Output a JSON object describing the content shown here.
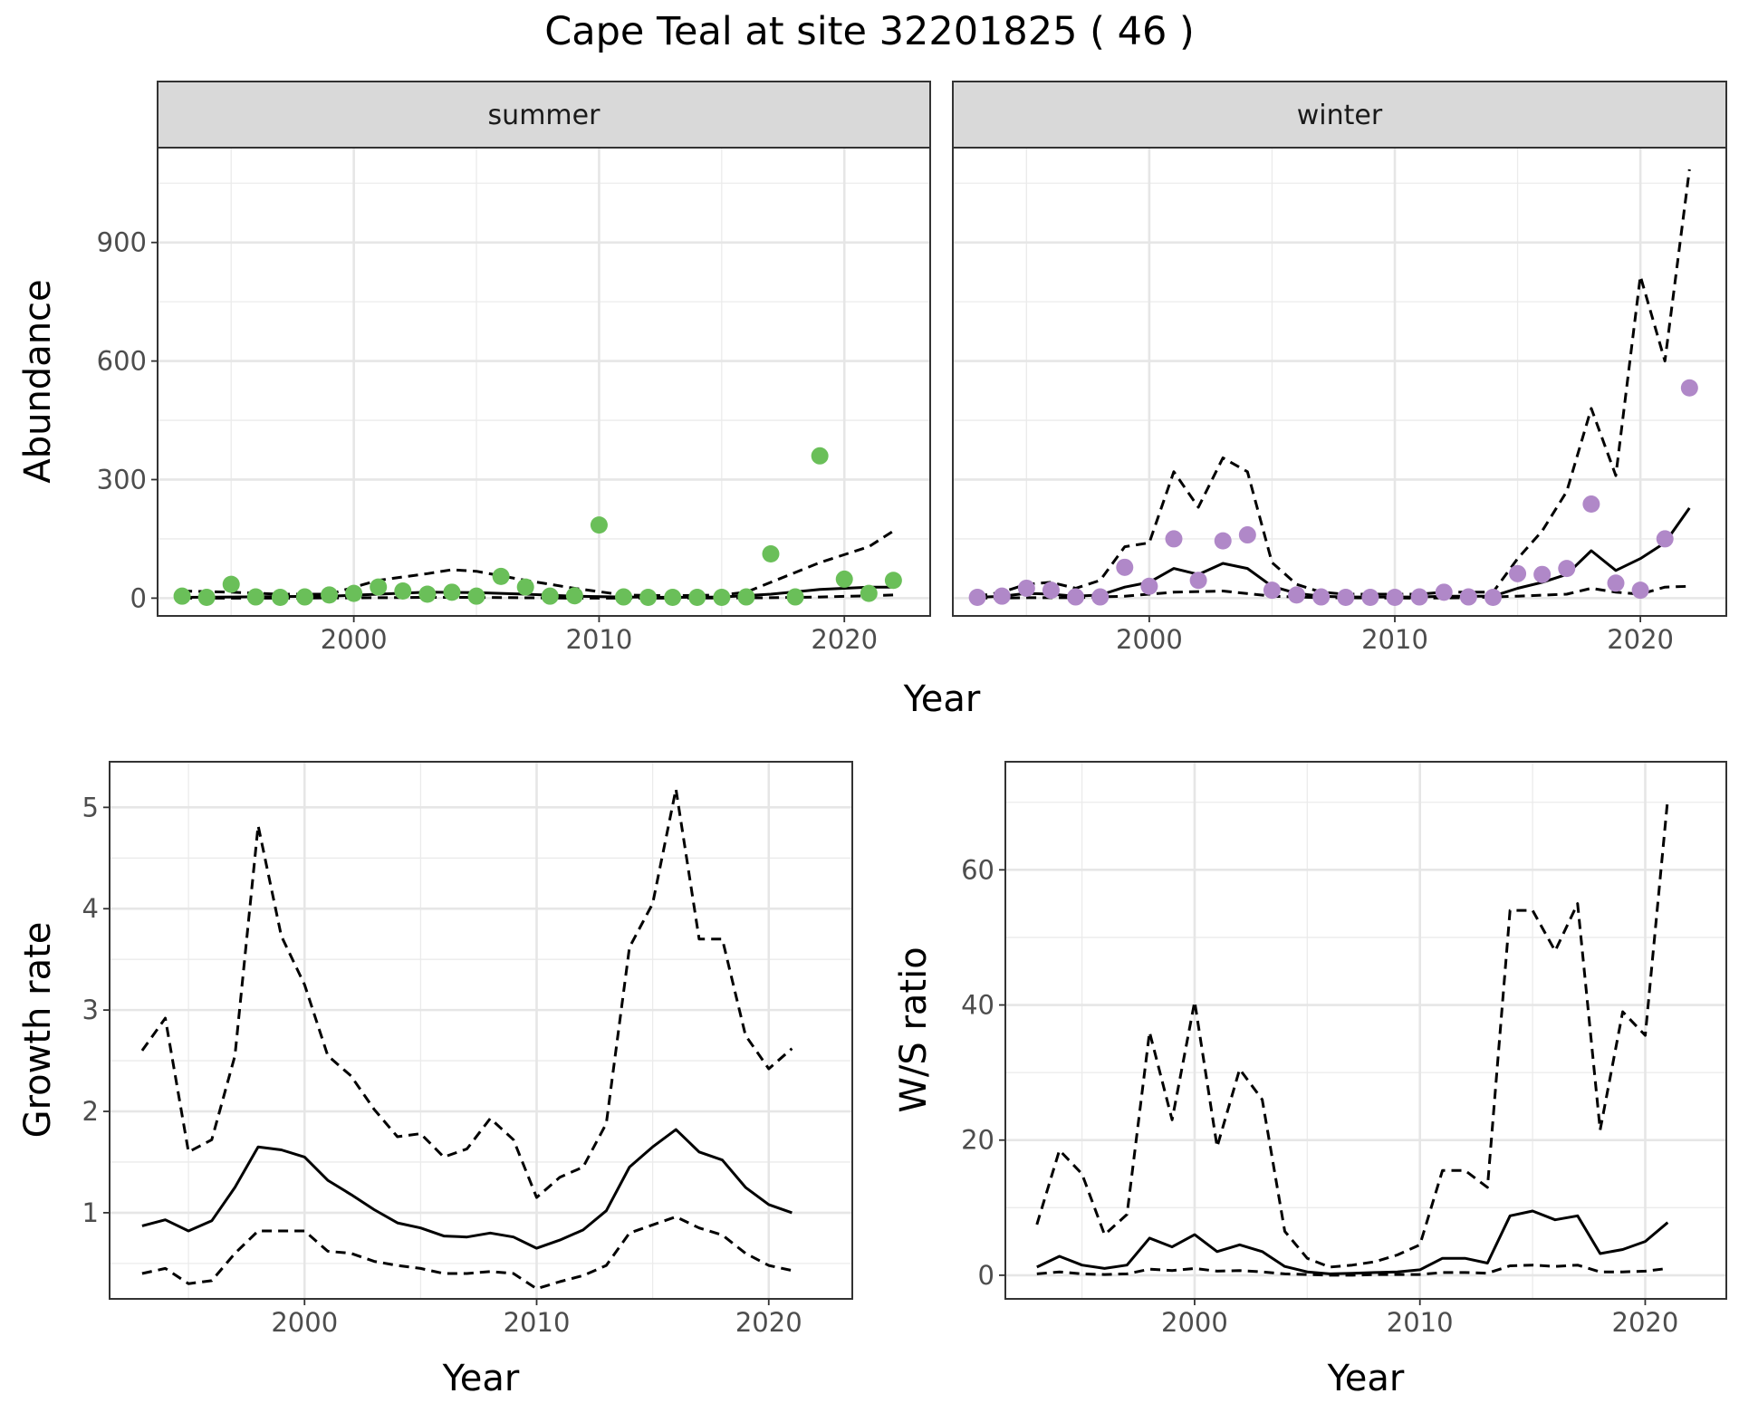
{
  "title": "Cape Teal at site 32201825 ( 46 )",
  "colors": {
    "summer_points": "#6abf59",
    "winter_points": "#b088c8",
    "lines": "#000000",
    "strip_fill": "#d9d9d9"
  },
  "chart_data": [
    {
      "type": "scatter",
      "panel": "abundance",
      "facets": [
        "summer",
        "winter"
      ],
      "xlabel": "Year",
      "ylabel": "Abundance",
      "xlim": [
        1992,
        2023.5
      ],
      "ylim": [
        -45,
        1140
      ],
      "xticks": [
        2000,
        2010,
        2020
      ],
      "yticks": [
        0,
        300,
        600,
        900
      ],
      "grid": true,
      "series": [
        {
          "facet": "summer",
          "points": [
            [
              1993,
              5
            ],
            [
              1994,
              2
            ],
            [
              1995,
              35
            ],
            [
              1996,
              3
            ],
            [
              1997,
              2
            ],
            [
              1998,
              3
            ],
            [
              1999,
              8
            ],
            [
              2000,
              12
            ],
            [
              2001,
              28
            ],
            [
              2002,
              18
            ],
            [
              2003,
              10
            ],
            [
              2004,
              15
            ],
            [
              2005,
              5
            ],
            [
              2006,
              55
            ],
            [
              2007,
              28
            ],
            [
              2008,
              5
            ],
            [
              2009,
              6
            ],
            [
              2010,
              185
            ],
            [
              2011,
              3
            ],
            [
              2012,
              2
            ],
            [
              2013,
              2
            ],
            [
              2014,
              2
            ],
            [
              2015,
              2
            ],
            [
              2016,
              3
            ],
            [
              2017,
              112
            ],
            [
              2018,
              3
            ],
            [
              2019,
              360
            ],
            [
              2020,
              48
            ],
            [
              2021,
              12
            ],
            [
              2022,
              45
            ]
          ],
          "fit": [
            [
              1993,
              2
            ],
            [
              1995,
              3
            ],
            [
              1997,
              4
            ],
            [
              1999,
              5
            ],
            [
              2001,
              10
            ],
            [
              2003,
              15
            ],
            [
              2005,
              14
            ],
            [
              2007,
              10
            ],
            [
              2009,
              5
            ],
            [
              2011,
              3
            ],
            [
              2013,
              2
            ],
            [
              2015,
              3
            ],
            [
              2017,
              10
            ],
            [
              2019,
              22
            ],
            [
              2021,
              28
            ],
            [
              2022,
              28
            ]
          ],
          "upper": [
            [
              1993,
              18
            ],
            [
              1995,
              15
            ],
            [
              1997,
              10
            ],
            [
              1999,
              10
            ],
            [
              2001,
              45
            ],
            [
              2003,
              62
            ],
            [
              2004,
              72
            ],
            [
              2005,
              68
            ],
            [
              2007,
              45
            ],
            [
              2009,
              25
            ],
            [
              2011,
              8
            ],
            [
              2013,
              6
            ],
            [
              2015,
              8
            ],
            [
              2016,
              15
            ],
            [
              2017,
              40
            ],
            [
              2019,
              90
            ],
            [
              2021,
              130
            ],
            [
              2022,
              170
            ]
          ],
          "lower": [
            [
              1993,
              0
            ],
            [
              1997,
              0
            ],
            [
              2001,
              1
            ],
            [
              2003,
              2
            ],
            [
              2005,
              2
            ],
            [
              2009,
              0
            ],
            [
              2013,
              0
            ],
            [
              2017,
              1
            ],
            [
              2019,
              3
            ],
            [
              2021,
              6
            ],
            [
              2022,
              8
            ]
          ]
        },
        {
          "facet": "winter",
          "points": [
            [
              1993,
              2
            ],
            [
              1994,
              5
            ],
            [
              1995,
              25
            ],
            [
              1996,
              20
            ],
            [
              1997,
              3
            ],
            [
              1998,
              3
            ],
            [
              1999,
              78
            ],
            [
              2000,
              30
            ],
            [
              2001,
              150
            ],
            [
              2002,
              45
            ],
            [
              2003,
              145
            ],
            [
              2004,
              160
            ],
            [
              2005,
              20
            ],
            [
              2006,
              8
            ],
            [
              2007,
              3
            ],
            [
              2008,
              2
            ],
            [
              2009,
              2
            ],
            [
              2010,
              2
            ],
            [
              2011,
              3
            ],
            [
              2012,
              15
            ],
            [
              2013,
              3
            ],
            [
              2014,
              2
            ],
            [
              2015,
              62
            ],
            [
              2016,
              60
            ],
            [
              2017,
              75
            ],
            [
              2018,
              238
            ],
            [
              2019,
              38
            ],
            [
              2020,
              20
            ],
            [
              2021,
              150
            ],
            [
              2022,
              532
            ]
          ],
          "fit": [
            [
              1993,
              2
            ],
            [
              1994,
              5
            ],
            [
              1995,
              12
            ],
            [
              1996,
              10
            ],
            [
              1997,
              5
            ],
            [
              1998,
              8
            ],
            [
              1999,
              28
            ],
            [
              2000,
              40
            ],
            [
              2001,
              75
            ],
            [
              2002,
              60
            ],
            [
              2003,
              88
            ],
            [
              2004,
              75
            ],
            [
              2005,
              30
            ],
            [
              2006,
              12
            ],
            [
              2007,
              5
            ],
            [
              2008,
              3
            ],
            [
              2009,
              3
            ],
            [
              2010,
              3
            ],
            [
              2011,
              3
            ],
            [
              2012,
              5
            ],
            [
              2013,
              5
            ],
            [
              2014,
              5
            ],
            [
              2015,
              25
            ],
            [
              2016,
              40
            ],
            [
              2017,
              60
            ],
            [
              2018,
              120
            ],
            [
              2019,
              70
            ],
            [
              2020,
              100
            ],
            [
              2021,
              140
            ],
            [
              2022,
              228
            ]
          ],
          "upper": [
            [
              1993,
              5
            ],
            [
              1994,
              15
            ],
            [
              1995,
              35
            ],
            [
              1996,
              40
            ],
            [
              1997,
              25
            ],
            [
              1998,
              45
            ],
            [
              1999,
              130
            ],
            [
              2000,
              140
            ],
            [
              2001,
              320
            ],
            [
              2002,
              230
            ],
            [
              2003,
              355
            ],
            [
              2004,
              320
            ],
            [
              2005,
              90
            ],
            [
              2006,
              35
            ],
            [
              2007,
              15
            ],
            [
              2008,
              10
            ],
            [
              2009,
              10
            ],
            [
              2010,
              10
            ],
            [
              2011,
              10
            ],
            [
              2012,
              15
            ],
            [
              2013,
              15
            ],
            [
              2014,
              15
            ],
            [
              2015,
              100
            ],
            [
              2016,
              170
            ],
            [
              2017,
              270
            ],
            [
              2018,
              480
            ],
            [
              2019,
              310
            ],
            [
              2020,
              815
            ],
            [
              2021,
              600
            ],
            [
              2022,
              1085
            ]
          ],
          "lower": [
            [
              1993,
              0
            ],
            [
              1995,
              1
            ],
            [
              1997,
              1
            ],
            [
              1999,
              5
            ],
            [
              2001,
              15
            ],
            [
              2003,
              18
            ],
            [
              2005,
              5
            ],
            [
              2007,
              1
            ],
            [
              2011,
              0
            ],
            [
              2013,
              1
            ],
            [
              2015,
              5
            ],
            [
              2017,
              10
            ],
            [
              2018,
              25
            ],
            [
              2019,
              15
            ],
            [
              2020,
              10
            ],
            [
              2021,
              28
            ],
            [
              2022,
              30
            ]
          ]
        }
      ]
    },
    {
      "type": "line",
      "panel": "growth",
      "xlabel": "Year",
      "ylabel": "Growth rate",
      "xlim": [
        1991.6,
        2023.6
      ],
      "ylim": [
        0.15,
        5.45
      ],
      "xticks": [
        2000,
        2010,
        2020
      ],
      "yticks": [
        1,
        2,
        3,
        4,
        5
      ],
      "grid": true,
      "x": [
        1993,
        1994,
        1995,
        1996,
        1997,
        1998,
        1999,
        2000,
        2001,
        2002,
        2003,
        2004,
        2005,
        2006,
        2007,
        2008,
        2009,
        2010,
        2011,
        2012,
        2013,
        2014,
        2015,
        2016,
        2017,
        2018,
        2019,
        2020,
        2021
      ],
      "series": [
        {
          "role": "estimate",
          "values": [
            0.87,
            0.93,
            0.82,
            0.92,
            1.25,
            1.65,
            1.62,
            1.55,
            1.32,
            1.18,
            1.03,
            0.9,
            0.85,
            0.77,
            0.76,
            0.8,
            0.76,
            0.65,
            0.73,
            0.83,
            1.02,
            1.45,
            1.65,
            1.82,
            1.6,
            1.52,
            1.25,
            1.08,
            1.0
          ]
        },
        {
          "role": "upper",
          "values": [
            2.6,
            2.92,
            1.6,
            1.72,
            2.55,
            4.82,
            3.73,
            3.25,
            2.55,
            2.35,
            2.02,
            1.75,
            1.78,
            1.55,
            1.63,
            1.93,
            1.72,
            1.15,
            1.35,
            1.45,
            1.88,
            3.62,
            4.05,
            5.18,
            3.7,
            3.7,
            2.75,
            2.42,
            2.62
          ]
        },
        {
          "role": "lower",
          "values": [
            0.4,
            0.45,
            0.3,
            0.33,
            0.6,
            0.82,
            0.82,
            0.82,
            0.62,
            0.6,
            0.52,
            0.48,
            0.45,
            0.4,
            0.4,
            0.42,
            0.4,
            0.25,
            0.32,
            0.38,
            0.48,
            0.8,
            0.88,
            0.96,
            0.85,
            0.78,
            0.6,
            0.48,
            0.43
          ]
        }
      ]
    },
    {
      "type": "line",
      "panel": "ratio",
      "xlabel": "Year",
      "ylabel": "W/S ratio",
      "xlim": [
        1991.6,
        2023.6
      ],
      "ylim": [
        -3.5,
        76
      ],
      "xticks": [
        2000,
        2010,
        2020
      ],
      "yticks": [
        0,
        20,
        40,
        60
      ],
      "grid": true,
      "x": [
        1993,
        1994,
        1995,
        1996,
        1997,
        1998,
        1999,
        2000,
        2001,
        2002,
        2003,
        2004,
        2005,
        2006,
        2007,
        2008,
        2009,
        2010,
        2011,
        2012,
        2013,
        2014,
        2015,
        2016,
        2017,
        2018,
        2019,
        2020,
        2021
      ],
      "series": [
        {
          "role": "estimate",
          "values": [
            1.2,
            2.8,
            1.5,
            1.0,
            1.5,
            5.5,
            4.2,
            6.0,
            3.5,
            4.5,
            3.5,
            1.3,
            0.5,
            0.2,
            0.3,
            0.4,
            0.5,
            0.8,
            2.5,
            2.5,
            1.8,
            8.8,
            9.5,
            8.2,
            8.8,
            3.2,
            3.8,
            5.0,
            7.8
          ]
        },
        {
          "role": "upper",
          "values": [
            7.5,
            18.5,
            15.0,
            6.0,
            9.0,
            36.0,
            23.0,
            40.5,
            19.0,
            30.5,
            26.0,
            6.5,
            2.5,
            1.2,
            1.5,
            2.0,
            3.0,
            4.5,
            15.5,
            15.5,
            13.0,
            54.0,
            54.0,
            48.0,
            55.0,
            21.5,
            39.0,
            35.5,
            70.5
          ]
        },
        {
          "role": "lower",
          "values": [
            0.2,
            0.5,
            0.2,
            0.1,
            0.2,
            0.9,
            0.7,
            1.0,
            0.6,
            0.7,
            0.5,
            0.2,
            0.1,
            0.0,
            0.0,
            0.1,
            0.1,
            0.1,
            0.4,
            0.4,
            0.3,
            1.4,
            1.5,
            1.3,
            1.5,
            0.5,
            0.5,
            0.6,
            1.0
          ]
        }
      ]
    }
  ]
}
